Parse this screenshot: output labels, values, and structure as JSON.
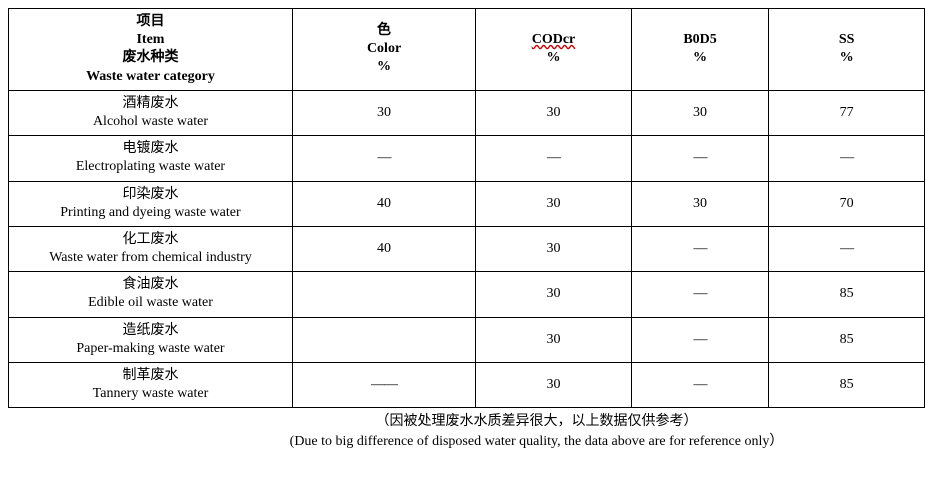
{
  "table": {
    "border_color": "#000000",
    "background_color": "#ffffff",
    "text_color": "#000000",
    "font_family": "Times New Roman / SimSun",
    "font_size_pt": 11,
    "header": {
      "item": {
        "line1_cn": "项目",
        "line2_en": "Item",
        "line3_cn": "废水种类",
        "line4_en": "Waste water category"
      },
      "color": {
        "line1_cn": "色",
        "line2_en": "Color",
        "line3": "%"
      },
      "codcr": {
        "line1": "CODcr",
        "line2": "%",
        "spellcheck_underline": true,
        "underline_color": "#d00000"
      },
      "bod5": {
        "line1": "B0D5",
        "line2": "%"
      },
      "ss": {
        "line1": "SS",
        "line2": "%"
      }
    },
    "column_widths_pct": {
      "item": 31,
      "color": 20,
      "codcr": 17,
      "bod5": 15,
      "ss": 17
    },
    "rows": [
      {
        "name_cn": "酒精废水",
        "name_en": "Alcohol waste water",
        "color": "30",
        "codcr": "30",
        "bod5": "30",
        "ss": "77"
      },
      {
        "name_cn": "电镀废水",
        "name_en": "Electroplating waste water",
        "color": "—",
        "codcr": "—",
        "bod5": "—",
        "ss": "—"
      },
      {
        "name_cn": "印染废水",
        "name_en": "Printing and dyeing waste water",
        "color": "40",
        "codcr": "30",
        "bod5": "30",
        "ss": "70"
      },
      {
        "name_cn": "化工废水",
        "name_en": "Waste water from chemical industry",
        "color": "40",
        "codcr": "30",
        "bod5": "—",
        "ss": "—"
      },
      {
        "name_cn": "食油废水",
        "name_en": "Edible oil waste water",
        "color": "",
        "codcr": "30",
        "bod5": "—",
        "ss": "85"
      },
      {
        "name_cn": "造纸废水",
        "name_en": "Paper-making waste water",
        "color": "",
        "codcr": "30",
        "bod5": "—",
        "ss": "85"
      },
      {
        "name_cn": "制革废水",
        "name_en": "Tannery waste water",
        "color": "——",
        "codcr": "30",
        "bod5": "—",
        "ss": "85"
      }
    ]
  },
  "footnote": {
    "line1_cn": "（因被处理废水水质差异很大，以上数据仅供参考）",
    "line2_en": "(Due to big difference of disposed water quality, the data above are for reference only）"
  }
}
